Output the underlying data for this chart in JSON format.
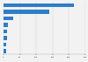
{
  "categories": [
    "",
    "",
    "",
    "",
    "",
    "",
    "",
    ""
  ],
  "values": [
    216000,
    139000,
    29000,
    14000,
    11000,
    10000,
    8000,
    7000
  ],
  "bar_color": "#2d7dca",
  "background_color": "#f2f2f2",
  "xlim": [
    0,
    250000
  ],
  "bar_height": 0.6,
  "figsize": [
    1.0,
    0.71
  ],
  "dpi": 100,
  "xticks": [
    0,
    50000,
    100000,
    150000,
    200000,
    250000
  ]
}
